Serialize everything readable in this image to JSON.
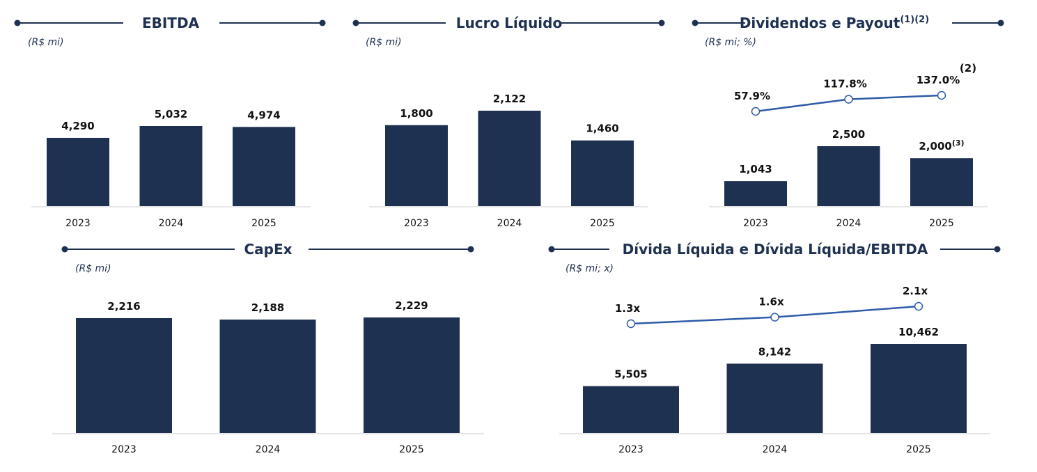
{
  "chart_data": [
    {
      "type": "bar",
      "title": "EBITDA",
      "subtitle": "(R$ mi)",
      "categories": [
        "2023",
        "2024",
        "2025"
      ],
      "series": [
        {
          "type": "bar",
          "color": "#1f3150",
          "values": [
            4290,
            5032,
            4974
          ],
          "value_labels": [
            "4,290",
            "5,032",
            "4,974"
          ]
        }
      ]
    },
    {
      "type": "bar",
      "title": "Lucro Líquido",
      "subtitle": "(R$ mi)",
      "categories": [
        "2023",
        "2024",
        "2025"
      ],
      "series": [
        {
          "type": "bar",
          "color": "#1f3150",
          "values": [
            1800,
            2122,
            1460
          ],
          "value_labels": [
            "1,800",
            "2,122",
            "1,460"
          ]
        }
      ]
    },
    {
      "type": "bar",
      "title": "Dividendos e Payout",
      "title_note": "(1)(2)",
      "subtitle": "(R$ mi; %)",
      "categories": [
        "2023",
        "2024",
        "2025"
      ],
      "series": [
        {
          "type": "bar",
          "color": "#1f3150",
          "values": [
            1043,
            2500,
            2000
          ],
          "value_labels": [
            "1,043",
            "2,500",
            "2,000"
          ],
          "value_notes": [
            null,
            null,
            "(3)"
          ]
        },
        {
          "type": "line",
          "axis": "y2",
          "color": "#2f5ba8",
          "values": [
            57.9,
            117.8,
            137.0
          ],
          "value_labels": [
            "57.9%",
            "117.8%",
            "137.0%"
          ],
          "value_notes": [
            null,
            null,
            "(2)"
          ]
        }
      ]
    },
    {
      "type": "bar",
      "title": "CapEx",
      "subtitle": "(R$ mi)",
      "categories": [
        "2023",
        "2024",
        "2025"
      ],
      "series": [
        {
          "type": "bar",
          "color": "#1f3150",
          "values": [
            2216,
            2188,
            2229
          ],
          "value_labels": [
            "2,216",
            "2,188",
            "2,229"
          ]
        }
      ]
    },
    {
      "type": "bar",
      "title": "Dívida Líquida e Dívida Líquida/EBITDA",
      "subtitle": "(R$ mi; x)",
      "categories": [
        "2023",
        "2024",
        "2025"
      ],
      "series": [
        {
          "type": "bar",
          "color": "#1f3150",
          "values": [
            5505,
            8142,
            10462
          ],
          "value_labels": [
            "5,505",
            "8,142",
            "10,462"
          ]
        },
        {
          "type": "line",
          "axis": "y2",
          "color": "#2f5ba8",
          "values": [
            1.3,
            1.6,
            2.1
          ],
          "value_labels": [
            "1.3x",
            "1.6x",
            "2.1x"
          ]
        }
      ]
    }
  ]
}
